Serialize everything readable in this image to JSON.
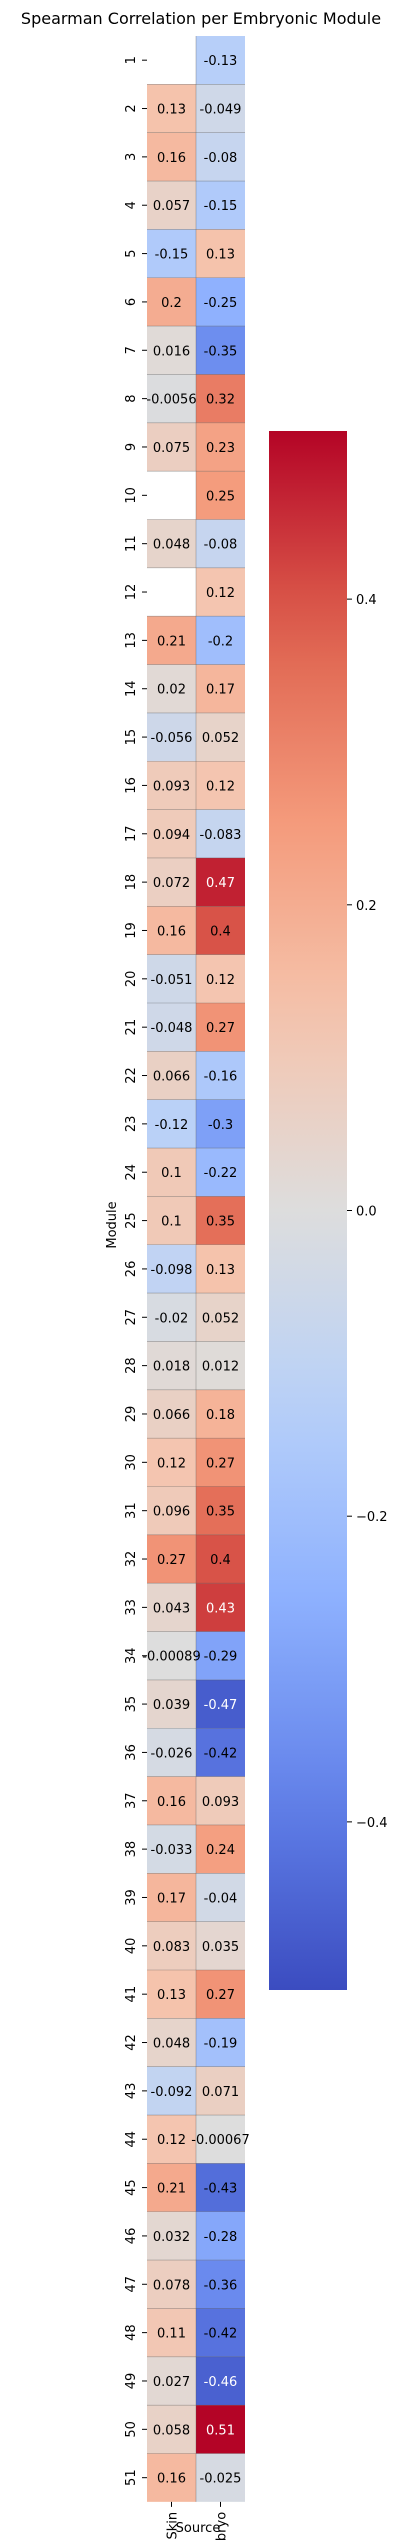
{
  "chart_data": {
    "type": "heatmap",
    "title": "Spearman Correlation per Embryonic Module",
    "xlabel": "Source",
    "ylabel": "Module",
    "columns": [
      "Ageing-Skin",
      "Embryo"
    ],
    "rows": [
      "1",
      "2",
      "3",
      "4",
      "5",
      "6",
      "7",
      "8",
      "9",
      "10",
      "11",
      "12",
      "13",
      "14",
      "15",
      "16",
      "17",
      "18",
      "19",
      "20",
      "21",
      "22",
      "23",
      "24",
      "25",
      "26",
      "27",
      "28",
      "29",
      "30",
      "31",
      "32",
      "33",
      "34",
      "35",
      "36",
      "37",
      "38",
      "39",
      "40",
      "41",
      "42",
      "43",
      "44",
      "45",
      "46",
      "47",
      "48",
      "49",
      "50",
      "51"
    ],
    "values": [
      [
        null,
        -0.13
      ],
      [
        0.13,
        -0.049
      ],
      [
        0.16,
        -0.08
      ],
      [
        0.057,
        -0.15
      ],
      [
        -0.15,
        0.13
      ],
      [
        0.2,
        -0.25
      ],
      [
        0.016,
        -0.35
      ],
      [
        -0.0056,
        0.32
      ],
      [
        0.075,
        0.23
      ],
      [
        null,
        0.25
      ],
      [
        0.048,
        -0.08
      ],
      [
        null,
        0.12
      ],
      [
        0.21,
        -0.2
      ],
      [
        0.02,
        0.17
      ],
      [
        -0.056,
        0.052
      ],
      [
        0.093,
        0.12
      ],
      [
        0.094,
        -0.083
      ],
      [
        0.072,
        0.47
      ],
      [
        0.16,
        0.4
      ],
      [
        -0.051,
        0.12
      ],
      [
        -0.048,
        0.27
      ],
      [
        0.066,
        -0.16
      ],
      [
        -0.12,
        -0.3
      ],
      [
        0.1,
        -0.22
      ],
      [
        0.1,
        0.35
      ],
      [
        -0.098,
        0.13
      ],
      [
        -0.02,
        0.052
      ],
      [
        0.018,
        0.012
      ],
      [
        0.066,
        0.18
      ],
      [
        0.12,
        0.27
      ],
      [
        0.096,
        0.35
      ],
      [
        0.27,
        0.4
      ],
      [
        0.043,
        0.43
      ],
      [
        -0.00089,
        -0.29
      ],
      [
        0.039,
        -0.47
      ],
      [
        -0.026,
        -0.42
      ],
      [
        0.16,
        0.093
      ],
      [
        -0.033,
        0.24
      ],
      [
        0.17,
        -0.04
      ],
      [
        0.083,
        0.035
      ],
      [
        0.13,
        0.27
      ],
      [
        0.048,
        -0.19
      ],
      [
        -0.092,
        0.071
      ],
      [
        0.12,
        -0.00067
      ],
      [
        0.21,
        -0.43
      ],
      [
        0.032,
        -0.28
      ],
      [
        0.078,
        -0.36
      ],
      [
        0.11,
        -0.42
      ],
      [
        0.027,
        -0.46
      ],
      [
        0.058,
        0.51
      ],
      [
        0.16,
        -0.025
      ]
    ],
    "labels": [
      [
        "",
        "-0.13"
      ],
      [
        "0.13",
        "-0.049"
      ],
      [
        "0.16",
        "-0.08"
      ],
      [
        "0.057",
        "-0.15"
      ],
      [
        "-0.15",
        "0.13"
      ],
      [
        "0.2",
        "-0.25"
      ],
      [
        "0.016",
        "-0.35"
      ],
      [
        "-0.0056",
        "0.32"
      ],
      [
        "0.075",
        "0.23"
      ],
      [
        "",
        "0.25"
      ],
      [
        "0.048",
        "-0.08"
      ],
      [
        "",
        "0.12"
      ],
      [
        "0.21",
        "-0.2"
      ],
      [
        "0.02",
        "0.17"
      ],
      [
        "-0.056",
        "0.052"
      ],
      [
        "0.093",
        "0.12"
      ],
      [
        "0.094",
        "-0.083"
      ],
      [
        "0.072",
        "0.47"
      ],
      [
        "0.16",
        "0.4"
      ],
      [
        "-0.051",
        "0.12"
      ],
      [
        "-0.048",
        "0.27"
      ],
      [
        "0.066",
        "-0.16"
      ],
      [
        "-0.12",
        "-0.3"
      ],
      [
        "0.1",
        "-0.22"
      ],
      [
        "0.1",
        "0.35"
      ],
      [
        "-0.098",
        "0.13"
      ],
      [
        "-0.02",
        "0.052"
      ],
      [
        "0.018",
        "0.012"
      ],
      [
        "0.066",
        "0.18"
      ],
      [
        "0.12",
        "0.27"
      ],
      [
        "0.096",
        "0.35"
      ],
      [
        "0.27",
        "0.4"
      ],
      [
        "0.043",
        "0.43"
      ],
      [
        "-0.00089",
        "-0.29"
      ],
      [
        "0.039",
        "-0.47"
      ],
      [
        "-0.026",
        "-0.42"
      ],
      [
        "0.16",
        "0.093"
      ],
      [
        "-0.033",
        "0.24"
      ],
      [
        "0.17",
        "-0.04"
      ],
      [
        "0.083",
        "0.035"
      ],
      [
        "0.13",
        "0.27"
      ],
      [
        "0.048",
        "-0.19"
      ],
      [
        "-0.092",
        "0.071"
      ],
      [
        "0.12",
        "-0.00067"
      ],
      [
        "0.21",
        "-0.43"
      ],
      [
        "0.032",
        "-0.28"
      ],
      [
        "0.078",
        "-0.36"
      ],
      [
        "0.11",
        "-0.42"
      ],
      [
        "0.027",
        "-0.46"
      ],
      [
        "0.058",
        "0.51"
      ],
      [
        "0.16",
        "-0.025"
      ]
    ],
    "colormap": "coolwarm",
    "vmin": -0.51,
    "vmax": 0.51,
    "colorbar_ticks": [
      0.4,
      0.2,
      0.0,
      -0.2,
      -0.4
    ],
    "colorbar_tick_labels": [
      "0.4",
      "0.2",
      "0.0",
      "−0.2",
      "−0.4"
    ],
    "missing_color": "#ffffff",
    "grid": false,
    "legend": "colorbar-right"
  }
}
